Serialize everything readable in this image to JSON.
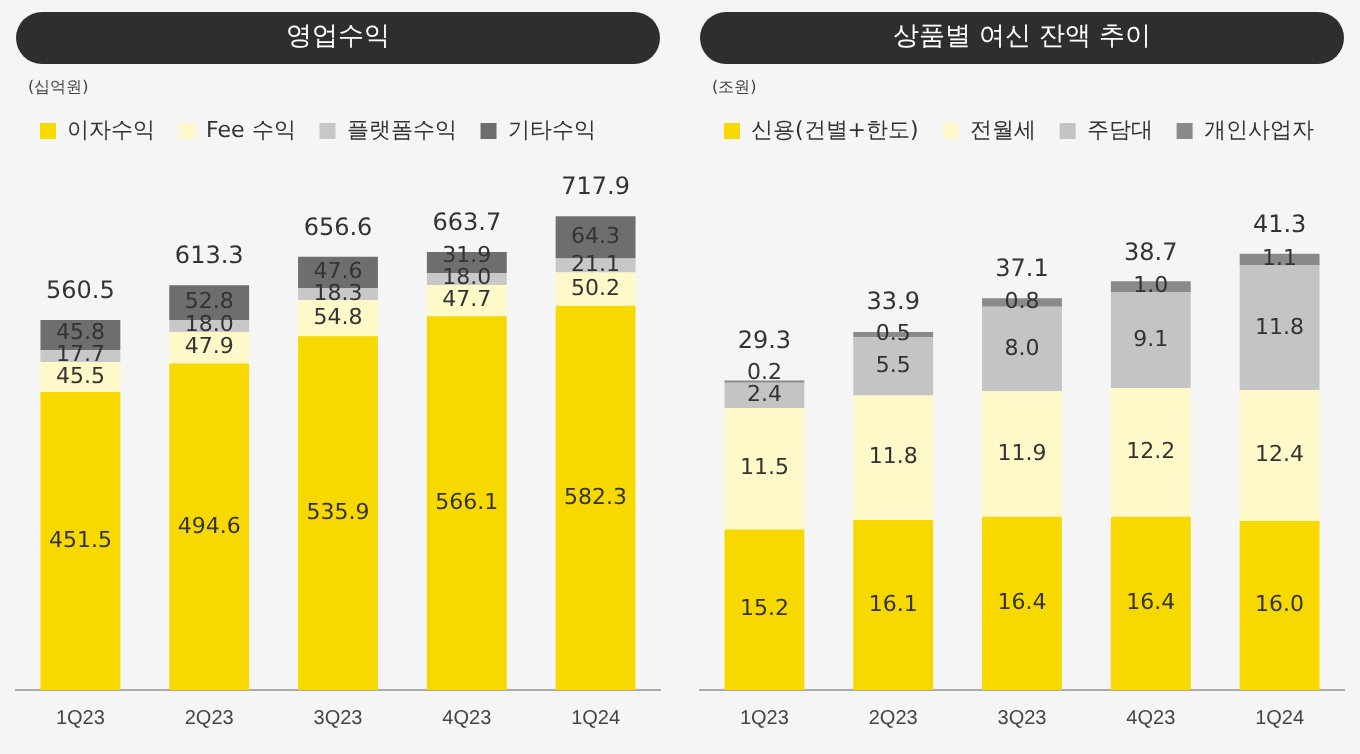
{
  "chart_data": [
    {
      "type": "bar",
      "title": "영업수익",
      "annotations": [
        "(십억원)"
      ],
      "categories": [
        "1Q23",
        "2Q23",
        "3Q23",
        "4Q23",
        "1Q24"
      ],
      "stacked": true,
      "legend": "top left",
      "grid": false,
      "series": [
        {
          "name": "이자수익",
          "color": "#f7d900",
          "values": [
            451.5,
            494.6,
            535.9,
            566.1,
            582.3
          ],
          "value_labels": [
            "451.5",
            "494.6",
            "535.9",
            "566.1",
            "582.3"
          ]
        },
        {
          "name": "Fee 수익",
          "color": "#fff8c8",
          "values": [
            45.5,
            47.9,
            54.8,
            47.7,
            50.2
          ],
          "value_labels": [
            "45.5",
            "47.9",
            "54.8",
            "47.7",
            "50.2"
          ]
        },
        {
          "name": "플랫폼수익",
          "color": "#c8c8c8",
          "values": [
            17.7,
            18.0,
            18.3,
            18.0,
            21.1
          ],
          "value_labels": [
            "17.7",
            "18.0",
            "18.3",
            "18.0",
            "21.1"
          ]
        },
        {
          "name": "기타수익",
          "color": "#6e6e6e",
          "values": [
            45.8,
            52.8,
            47.6,
            31.9,
            64.3
          ],
          "value_labels": [
            "45.8",
            "52.8",
            "47.6",
            "31.9",
            "64.3"
          ]
        }
      ],
      "totals": [
        "560.5",
        "613.3",
        "656.6",
        "663.7",
        "717.9"
      ]
    },
    {
      "type": "bar",
      "title": "상품별 여신 잔액 추이",
      "annotations": [
        "(조원)"
      ],
      "categories": [
        "1Q23",
        "2Q23",
        "3Q23",
        "4Q23",
        "1Q24"
      ],
      "stacked": true,
      "legend": "top left",
      "grid": false,
      "series": [
        {
          "name": "신용(건별+한도)",
          "color": "#f7d900",
          "values": [
            15.2,
            16.1,
            16.4,
            16.4,
            16.0
          ],
          "value_labels": [
            "15.2",
            "16.1",
            "16.4",
            "16.4",
            "16.0"
          ]
        },
        {
          "name": "전월세",
          "color": "#fff8c8",
          "values": [
            11.5,
            11.8,
            11.9,
            12.2,
            12.4
          ],
          "value_labels": [
            "11.5",
            "11.8",
            "11.9",
            "12.2",
            "12.4"
          ]
        },
        {
          "name": "주담대",
          "color": "#c4c4c4",
          "values": [
            2.4,
            5.5,
            8.0,
            9.1,
            11.8
          ],
          "value_labels": [
            "2.4",
            "5.5",
            "8.0",
            "9.1",
            "11.8"
          ]
        },
        {
          "name": "개인사업자",
          "color": "#8a8a8a",
          "values": [
            0.2,
            0.5,
            0.8,
            1.0,
            1.1
          ],
          "value_labels": [
            "0.2",
            "0.5",
            "0.8",
            "1.0",
            "1.1"
          ]
        }
      ],
      "totals": [
        "29.3",
        "33.9",
        "37.1",
        "38.7",
        "41.3"
      ]
    }
  ]
}
